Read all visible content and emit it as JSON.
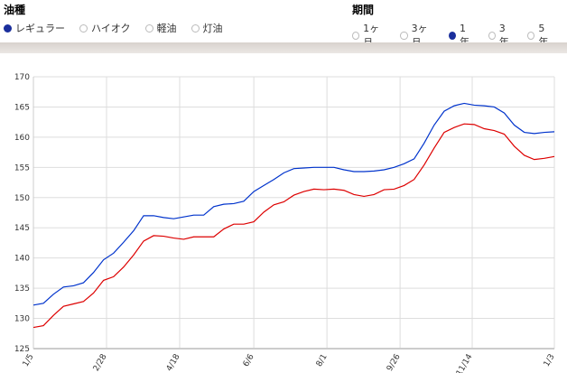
{
  "fuel": {
    "title": "油種",
    "options": [
      "レギュラー",
      "ハイオク",
      "軽油",
      "灯油"
    ],
    "selected": 0
  },
  "period": {
    "title": "期間",
    "options": [
      "1ヶ月",
      "3ヶ月",
      "1年",
      "3年",
      "5年"
    ],
    "selected": 2
  },
  "chart_data": {
    "type": "line",
    "ylim": [
      125,
      170
    ],
    "yticks": [
      125,
      130,
      135,
      140,
      145,
      150,
      155,
      160,
      165,
      170
    ],
    "xtick_labels": [
      "1/5",
      "2/28",
      "4/18",
      "6/6",
      "8/1",
      "9/26",
      "11/14",
      "1/3"
    ],
    "xtick_index": [
      0,
      7.3,
      14.6,
      22,
      29.3,
      36.6,
      43.8,
      52
    ],
    "grid": true,
    "series": [
      {
        "color": "#0033cc",
        "values": [
          132.2,
          132.5,
          134.0,
          135.2,
          135.4,
          135.9,
          137.6,
          139.7,
          140.8,
          142.6,
          144.5,
          147.0,
          147.0,
          146.7,
          146.5,
          146.8,
          147.1,
          147.1,
          148.5,
          148.9,
          149.0,
          149.4,
          151.0,
          152.0,
          153.0,
          154.1,
          154.8,
          154.9,
          155.0,
          155.0,
          155.0,
          154.6,
          154.3,
          154.3,
          154.4,
          154.6,
          155.0,
          155.6,
          156.4,
          159.0,
          162.0,
          164.3,
          165.2,
          165.6,
          165.3,
          165.2,
          165.0,
          164.0,
          162.0,
          160.8,
          160.6,
          160.8,
          160.9
        ]
      },
      {
        "color": "#dd0000",
        "values": [
          128.5,
          128.8,
          130.5,
          132.0,
          132.4,
          132.8,
          134.2,
          136.3,
          136.9,
          138.5,
          140.5,
          142.8,
          143.7,
          143.6,
          143.3,
          143.1,
          143.5,
          143.5,
          143.5,
          144.8,
          145.6,
          145.6,
          146.0,
          147.6,
          148.8,
          149.3,
          150.4,
          151.0,
          151.4,
          151.3,
          151.4,
          151.2,
          150.5,
          150.2,
          150.5,
          151.3,
          151.4,
          152.0,
          153.0,
          155.4,
          158.2,
          160.8,
          161.6,
          162.2,
          162.1,
          161.4,
          161.1,
          160.5,
          158.5,
          157.0,
          156.3,
          156.5,
          156.8
        ]
      }
    ]
  }
}
